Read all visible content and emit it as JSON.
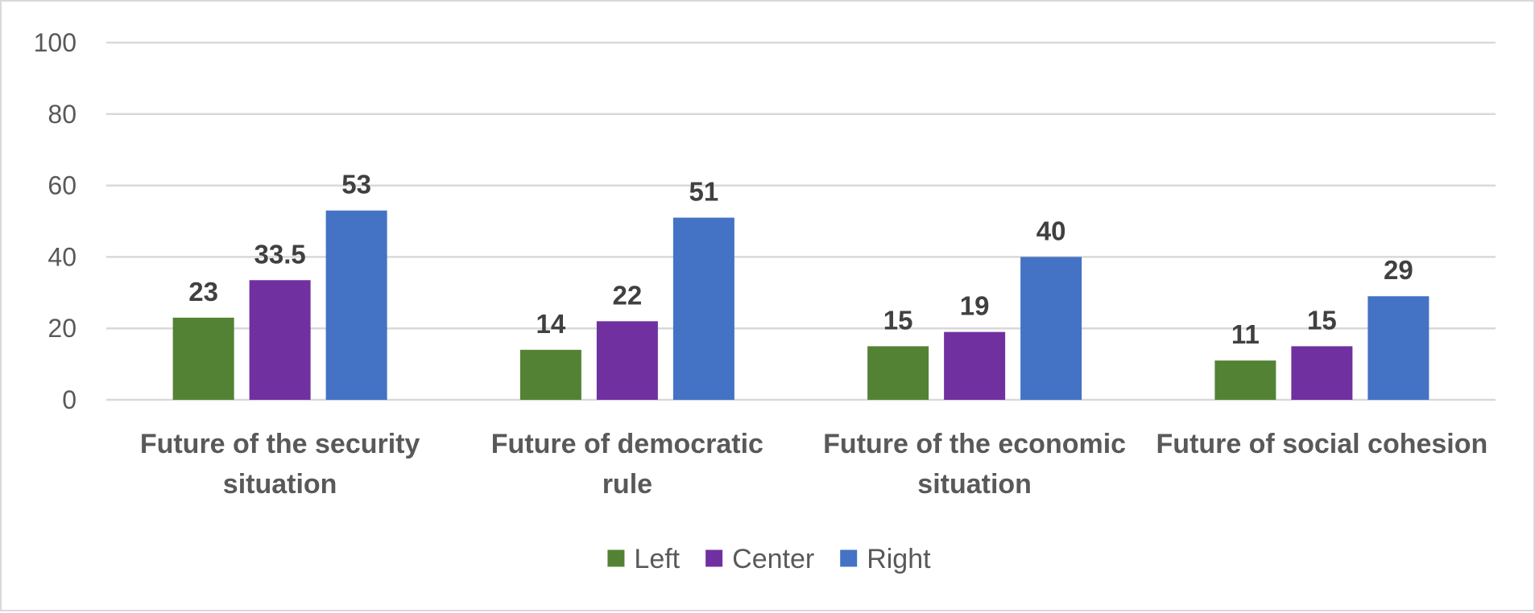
{
  "chart_data": {
    "type": "bar",
    "title": "",
    "xlabel": "",
    "ylabel": "",
    "ylim": [
      0,
      100
    ],
    "yticks": [
      0,
      20,
      40,
      60,
      80,
      100
    ],
    "grid": true,
    "legend_position": "bottom-center",
    "categories": [
      [
        "Future of the security",
        "situation"
      ],
      [
        "Future of democratic",
        "rule"
      ],
      [
        "Future of the economic",
        "situation"
      ],
      [
        "Future of social cohesion"
      ]
    ],
    "series": [
      {
        "name": "Left",
        "color": "#548235",
        "values": [
          23,
          14,
          15,
          11
        ]
      },
      {
        "name": "Center",
        "color": "#7030A0",
        "values": [
          33.5,
          22,
          19,
          15
        ]
      },
      {
        "name": "Right",
        "color": "#4472C4",
        "values": [
          53,
          51,
          40,
          29
        ]
      }
    ]
  }
}
